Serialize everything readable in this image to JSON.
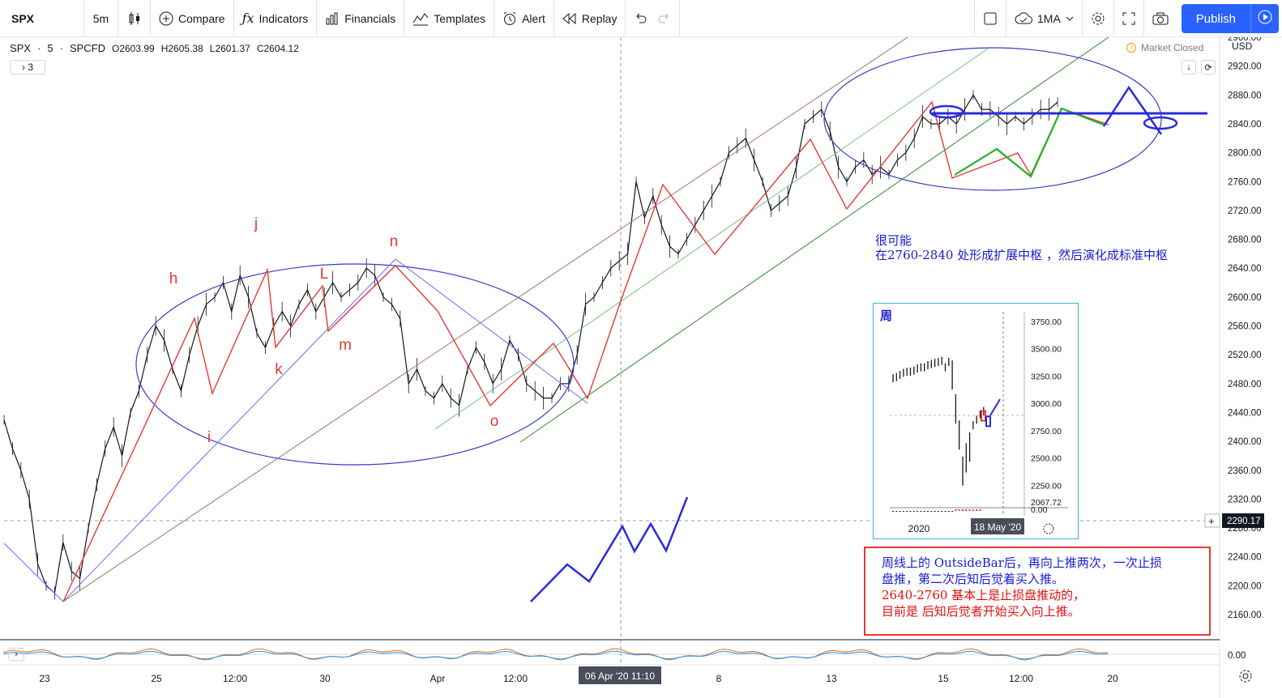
{
  "toolbar": {
    "symbol": "SPX",
    "interval": "5m",
    "compare": "Compare",
    "indicators": "Indicators",
    "financials": "Financials",
    "templates": "Templates",
    "alert": "Alert",
    "replay": "Replay",
    "layout_name": "1MA",
    "publish": "Publish"
  },
  "legend": {
    "symbol": "SPX",
    "interval": "5",
    "exchange": "SPCFD",
    "open": "O2603.99",
    "high": "H2605.38",
    "low": "L2601.37",
    "close": "C2604.12",
    "collapsed_count": "3"
  },
  "status": {
    "market": "Market Closed",
    "currency": "USD"
  },
  "chart_data": {
    "type": "line",
    "title": "",
    "symbol": "SPX",
    "y_axis": {
      "ticks": [
        2960,
        2920,
        2880,
        2840,
        2800,
        2760,
        2720,
        2680,
        2640,
        2600,
        2560,
        2520,
        2480,
        2440,
        2400,
        2360,
        2320,
        2280,
        2240,
        2200,
        2160
      ],
      "tick_labels": [
        "2960.00",
        "2920.00",
        "2880.00",
        "2840.00",
        "2800.00",
        "2760.00",
        "2720.00",
        "2680.00",
        "2640.00",
        "2600.00",
        "2560.00",
        "2520.00",
        "2480.00",
        "2440.00",
        "2400.00",
        "2360.00",
        "2320.00",
        "2280.00",
        "2240.00",
        "2200.00",
        "2160.00"
      ],
      "range": [
        2130,
        2970
      ]
    },
    "x_axis": {
      "tick_labels": [
        "23",
        "25",
        "12:00",
        "30",
        "Apr",
        "12:00",
        "8",
        "13",
        "15",
        "12:00",
        "20"
      ],
      "crosshair_label": "06 Apr '20  11:10"
    },
    "crosshair_price_label": "2290.17",
    "oscillator_label": "0.00",
    "series": [
      {
        "x": [
          0,
          2,
          4,
          6,
          8,
          10,
          12,
          14,
          16,
          18,
          20,
          22,
          24,
          26,
          28,
          30,
          32,
          34,
          36,
          38,
          40,
          42,
          44,
          46,
          48,
          50,
          52,
          54,
          56,
          58,
          60,
          62,
          64,
          66,
          68,
          70,
          72,
          74,
          76,
          78,
          80,
          82,
          84,
          86,
          88,
          90,
          92,
          94,
          96,
          98,
          100,
          102,
          104,
          106,
          108,
          110,
          112,
          114,
          116,
          118,
          120,
          122,
          124,
          126,
          128,
          130,
          132,
          134,
          136,
          138,
          140,
          142,
          144,
          146,
          148,
          150,
          152,
          154,
          156,
          158,
          160,
          162,
          164,
          166,
          168,
          170,
          172,
          174,
          176,
          178,
          180,
          182,
          184,
          186,
          188,
          190,
          192,
          194,
          196,
          198,
          200,
          202,
          204,
          206,
          208,
          210,
          212,
          214,
          216,
          218,
          220,
          222,
          224,
          226,
          228,
          230,
          232,
          234,
          236,
          238,
          240,
          242,
          244,
          246,
          248,
          250
        ],
        "values": [
          2430,
          2390,
          2360,
          2320,
          2230,
          2200,
          2190,
          2260,
          2220,
          2210,
          2280,
          2340,
          2390,
          2420,
          2380,
          2440,
          2470,
          2520,
          2560,
          2540,
          2500,
          2470,
          2520,
          2560,
          2590,
          2600,
          2620,
          2580,
          2630,
          2600,
          2550,
          2530,
          2560,
          2580,
          2560,
          2590,
          2610,
          2580,
          2600,
          2620,
          2600,
          2610,
          2620,
          2640,
          2630,
          2600,
          2590,
          2570,
          2480,
          2500,
          2470,
          2460,
          2480,
          2460,
          2450,
          2500,
          2530,
          2510,
          2480,
          2500,
          2540,
          2520,
          2480,
          2470,
          2460,
          2460,
          2480,
          2480,
          2520,
          2590,
          2600,
          2620,
          2640,
          2650,
          2660,
          2760,
          2710,
          2740,
          2700,
          2670,
          2660,
          2680,
          2700,
          2720,
          2740,
          2760,
          2800,
          2810,
          2820,
          2790,
          2760,
          2720,
          2730,
          2740,
          2780,
          2840,
          2850,
          2860,
          2830,
          2780,
          2760,
          2780,
          2790,
          2770,
          2780,
          2770,
          2790,
          2800,
          2820,
          2850,
          2840,
          2840,
          2850,
          2840,
          2860,
          2880,
          2860,
          2860,
          2850,
          2840,
          2850,
          2840,
          2850,
          2860,
          2860,
          2870
        ]
      }
    ],
    "annotations": [
      "h",
      "j",
      "i",
      "k",
      "L",
      "m",
      "n",
      "o"
    ],
    "notes": {
      "top_note_line1": "很可能",
      "top_note_line2": "在2760-2840 处形成扩展中枢 ，然后演化成标准中枢"
    }
  },
  "inset": {
    "title": "周",
    "y_labels": [
      "3750.00",
      "3500.00",
      "3250.00",
      "3000.00",
      "2750.00",
      "2500.00",
      "2250.00",
      "2067.72",
      "0.00"
    ],
    "x_label_year": "2020",
    "x_label_date": "18 May '20"
  },
  "redbox": {
    "line1": "周线上的 OutsideBar后，再向上推两次，一次止损",
    "line2": "盘推，第二次后知后觉着买入推。",
    "line3": "2640-2760 基本上是止损盘推动的，",
    "line4": "目前是 后知后觉者开始买入向上推。"
  },
  "colors": {
    "accent": "#2962ff",
    "annotation_red": "#e53935",
    "annotation_blue": "#1a1ad6",
    "candle": "#131722"
  }
}
